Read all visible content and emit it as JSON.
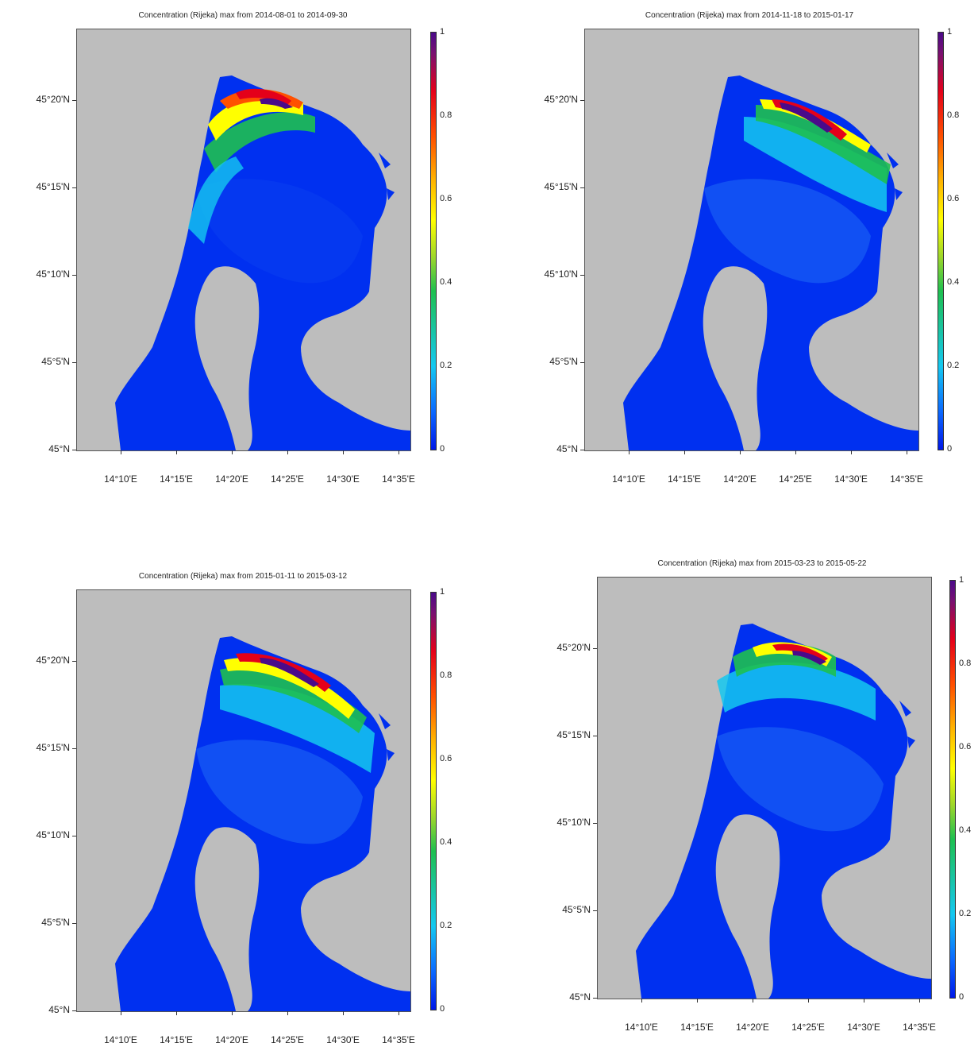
{
  "panels": [
    {
      "title": "Concentration (Rijeka) max from 2014-08-01 to 2014-09-30",
      "lat_labels": [
        "45°20'N",
        "45°15'N",
        "45°10'N",
        "45°5'N",
        "45°N"
      ],
      "lon_labels": [
        "14°10'E",
        "14°15'E",
        "14°20'E",
        "14°25'E",
        "14°30'E",
        "14°35'E"
      ],
      "colorbar_labels": [
        "1",
        "0.8",
        "0.6",
        "0.4",
        "0.2",
        "0"
      ]
    },
    {
      "title": "Concentration (Rijeka) max from 2014-11-18 to 2015-01-17",
      "lat_labels": [
        "45°20'N",
        "45°15'N",
        "45°10'N",
        "45°5'N",
        "45°N"
      ],
      "lon_labels": [
        "14°10'E",
        "14°15'E",
        "14°20'E",
        "14°25'E",
        "14°30'E",
        "14°35'E"
      ],
      "colorbar_labels": [
        "1",
        "0.8",
        "0.6",
        "0.4",
        "0.2",
        "0"
      ]
    },
    {
      "title": "Concentration (Rijeka) max from 2015-01-11 to 2015-03-12",
      "lat_labels": [
        "45°20'N",
        "45°15'N",
        "45°10'N",
        "45°5'N",
        "45°N"
      ],
      "lon_labels": [
        "14°10'E",
        "14°15'E",
        "14°20'E",
        "14°25'E",
        "14°30'E",
        "14°35'E"
      ],
      "colorbar_labels": [
        "1",
        "0.8",
        "0.6",
        "0.4",
        "0.2",
        "0"
      ]
    },
    {
      "title": "Concentration (Rijeka) max from 2015-03-23 to 2015-05-22",
      "lat_labels": [
        "45°20'N",
        "45°15'N",
        "45°10'N",
        "45°5'N",
        "45°N"
      ],
      "lon_labels": [
        "14°10'E",
        "14°15'E",
        "14°20'E",
        "14°25'E",
        "14°30'E",
        "14°35'E"
      ],
      "colorbar_labels": [
        "1",
        "0.8",
        "0.6",
        "0.4",
        "0.2",
        "0"
      ]
    }
  ],
  "colors": {
    "land": "#bdbdbd",
    "sea_low": "#0030f0",
    "scale": [
      "#0018e8",
      "#14c8f0",
      "#1ec050",
      "#ffff00",
      "#ff5000",
      "#e4001a",
      "#4a0a8a"
    ]
  }
}
